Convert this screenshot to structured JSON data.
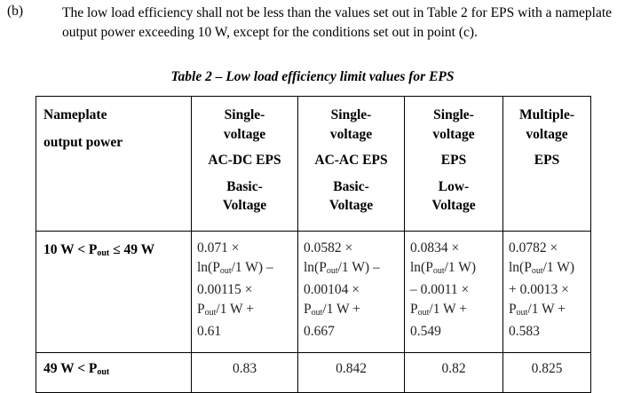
{
  "paragraph": {
    "label": "(b)",
    "text": "The low load efficiency shall not be less than the values set out in Table 2 for EPS with a nameplate output power exceeding 10 W, except for the conditions set out in point (c)."
  },
  "caption": "Table 2 – Low load efficiency limit values for EPS",
  "table": {
    "header": {
      "first": [
        "Nameplate",
        "output power"
      ],
      "columns": [
        {
          "top": [
            "Single-",
            "voltage"
          ],
          "mid": "AC-DC EPS",
          "bottom": [
            "Basic-",
            "Voltage"
          ]
        },
        {
          "top": [
            "Single-",
            "voltage"
          ],
          "mid": "AC-AC EPS",
          "bottom": [
            "Basic-",
            "Voltage"
          ]
        },
        {
          "top": [
            "Single-",
            "voltage"
          ],
          "mid": "EPS",
          "bottom": [
            "Low-",
            "Voltage"
          ]
        },
        {
          "top": [
            "Multiple-",
            "voltage"
          ],
          "mid": "EPS",
          "bottom": []
        }
      ]
    },
    "rows": [
      {
        "label": "10 W < P|out| ≤ 49 W",
        "cells": [
          [
            "0.071 ×",
            "ln(P|out|/1 W) –",
            "0.00115 ×",
            "P|out|/1 W +",
            "0.61"
          ],
          [
            "0.0582 ×",
            "ln(P|out|/1 W) –",
            "0.00104 ×",
            "P|out|/1 W +",
            "0.667"
          ],
          [
            "0.0834 ×",
            "ln(P|out|/1 W)",
            "– 0.0011 ×",
            "P|out|/1 W +",
            "0.549"
          ],
          [
            "0.0782 ×",
            "ln(P|out|/1 W)",
            "+ 0.0013 ×",
            "P|out|/1 W +",
            "0.583"
          ]
        ]
      },
      {
        "label": "49 W < P|out|",
        "cells": [
          [
            "0.83"
          ],
          [
            "0.842"
          ],
          [
            "0.82"
          ],
          [
            "0.825"
          ]
        ]
      }
    ]
  }
}
